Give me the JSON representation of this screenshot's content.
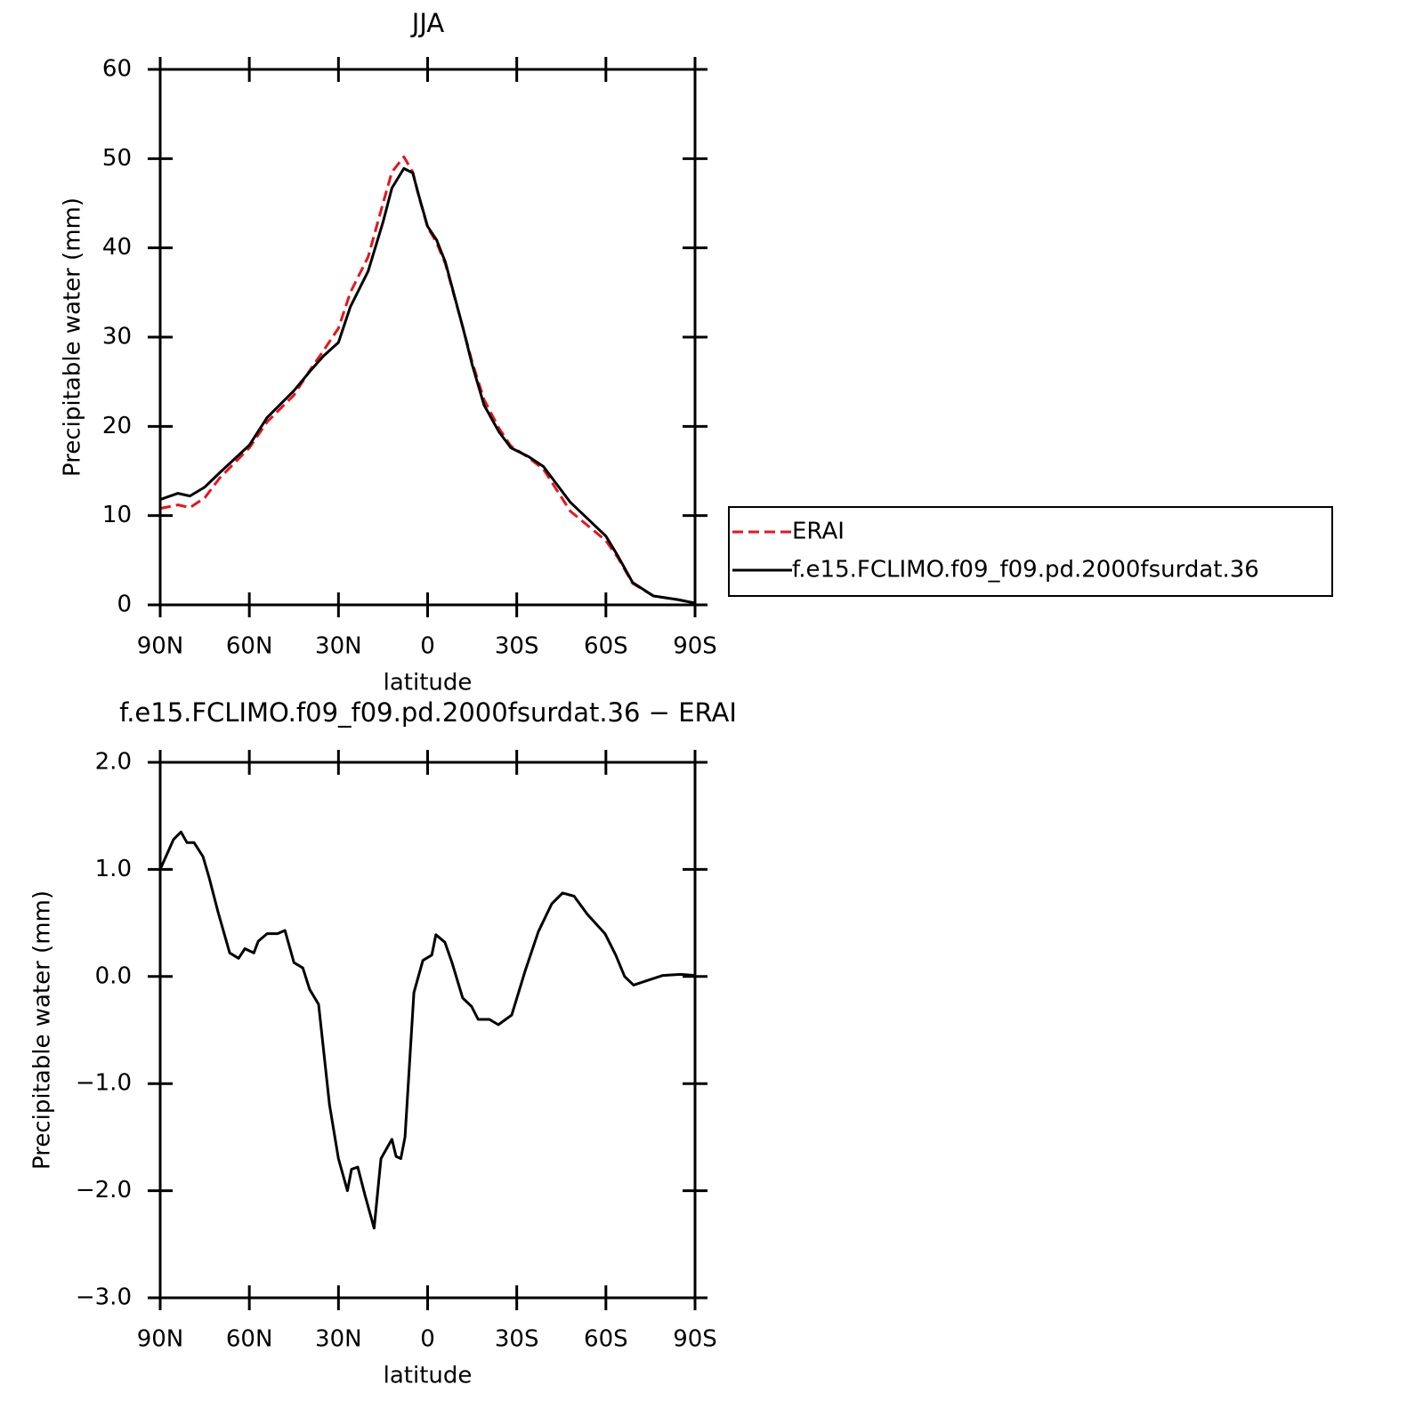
{
  "chart_data": [
    {
      "type": "line",
      "title": "JJA",
      "xlabel": "latitude",
      "ylabel": "Precipitable water (mm)",
      "x": [
        90,
        84,
        80,
        75,
        70,
        60,
        54,
        45,
        39,
        35,
        30,
        26,
        20,
        15,
        12,
        8,
        5,
        3,
        0,
        -3,
        -6,
        -12,
        -15,
        -19,
        -24,
        -28,
        -34,
        -39,
        -48,
        -60,
        -64,
        -69,
        -76,
        -84,
        -90
      ],
      "series": [
        {
          "name": "ERAI",
          "color": "#e8141c",
          "linestyle": "dashed",
          "values": [
            10.8,
            11.2,
            10.9,
            12,
            14.2,
            17.6,
            20.5,
            23.5,
            26.6,
            28.5,
            31,
            35,
            39,
            45,
            48.5,
            50.2,
            48.5,
            45.8,
            42.3,
            40.6,
            38.2,
            30.9,
            27.2,
            23,
            19.8,
            17.8,
            16.5,
            15.2,
            10.5,
            7.2,
            5.3,
            2.4,
            1.0,
            0.6,
            0.2
          ]
        },
        {
          "name": "f.e15.FCLIMO.f09_f09.pd.2000fsurdat.36",
          "color": "#000000",
          "linestyle": "solid",
          "values": [
            11.8,
            12.5,
            12.2,
            13.2,
            14.8,
            17.9,
            21,
            24,
            26.4,
            27.9,
            29.4,
            33.4,
            37.4,
            42.9,
            46.7,
            48.9,
            48.4,
            45.9,
            42.4,
            40.9,
            38.4,
            30.9,
            26.9,
            22.4,
            19.4,
            17.6,
            16.6,
            15.5,
            11.5,
            7.7,
            5.5,
            2.5,
            1.0,
            0.6,
            0.2
          ]
        }
      ],
      "xlim": [
        90,
        -90
      ],
      "xticks": [
        {
          "value": 90,
          "label": "90N"
        },
        {
          "value": 60,
          "label": "60N"
        },
        {
          "value": 30,
          "label": "30N"
        },
        0,
        {
          "value": -30,
          "label": "30S"
        },
        {
          "value": -60,
          "label": "60S"
        },
        {
          "value": -90,
          "label": "90S"
        }
      ],
      "ylim": [
        0,
        60
      ],
      "yticks": [
        0,
        10,
        20,
        30,
        40,
        50,
        60
      ],
      "legend": "right"
    },
    {
      "type": "line",
      "title": "f.e15.FCLIMO.f09_f09.pd.2000fsurdat.36 − ERAI",
      "xlabel": "latitude",
      "ylabel": "Precipitable water (mm)",
      "x": [
        90,
        85.5,
        83,
        81,
        78.6,
        75.6,
        73.5,
        70.5,
        66.6,
        63.6,
        61.5,
        58.5,
        57,
        54,
        50.5,
        48,
        45,
        42,
        39.7,
        36.7,
        33,
        30,
        27,
        25.6,
        23.5,
        21,
        18,
        15.7,
        12,
        10.6,
        9,
        7.6,
        4.6,
        1.6,
        -1.4,
        -2.8,
        -5.8,
        -8.2,
        -11.8,
        -14.8,
        -17,
        -20.8,
        -23.8,
        -28.3,
        -32.8,
        -37.3,
        -41.8,
        -45.4,
        -49.3,
        -53.8,
        -59.7,
        -63.3,
        -66.3,
        -69.3,
        -74.7,
        -79.2,
        -85.2,
        -90
      ],
      "values": [
        1.0,
        1.28,
        1.35,
        1.25,
        1.25,
        1.12,
        0.92,
        0.6,
        0.22,
        0.17,
        0.26,
        0.22,
        0.33,
        0.4,
        0.4,
        0.43,
        0.13,
        0.08,
        -0.12,
        -0.26,
        -1.2,
        -1.7,
        -2.0,
        -1.8,
        -1.78,
        -2.05,
        -2.35,
        -1.7,
        -1.52,
        -1.68,
        -1.7,
        -1.5,
        -0.15,
        0.15,
        0.2,
        0.39,
        0.32,
        0.13,
        -0.2,
        -0.28,
        -0.4,
        -0.4,
        -0.45,
        -0.36,
        0.05,
        0.42,
        0.68,
        0.78,
        0.75,
        0.58,
        0.4,
        0.2,
        0,
        -0.08,
        -0.03,
        0.01,
        0.02,
        0.01
      ],
      "color": "#000000",
      "xlim": [
        90,
        -90
      ],
      "xticks": [
        {
          "value": 90,
          "label": "90N"
        },
        {
          "value": 60,
          "label": "60N"
        },
        {
          "value": 30,
          "label": "30N"
        },
        0,
        {
          "value": -30,
          "label": "30S"
        },
        {
          "value": -60,
          "label": "60S"
        },
        {
          "value": -90,
          "label": "90S"
        }
      ],
      "ylim": [
        -3,
        2
      ],
      "yticks": [
        {
          "value": -3,
          "label": "−3.0"
        },
        {
          "value": -2,
          "label": "−2.0"
        },
        {
          "value": -1,
          "label": "−1.0"
        },
        {
          "value": 0,
          "label": "0.0"
        },
        {
          "value": 1,
          "label": "1.0"
        },
        {
          "value": 2,
          "label": "2.0"
        }
      ]
    }
  ]
}
